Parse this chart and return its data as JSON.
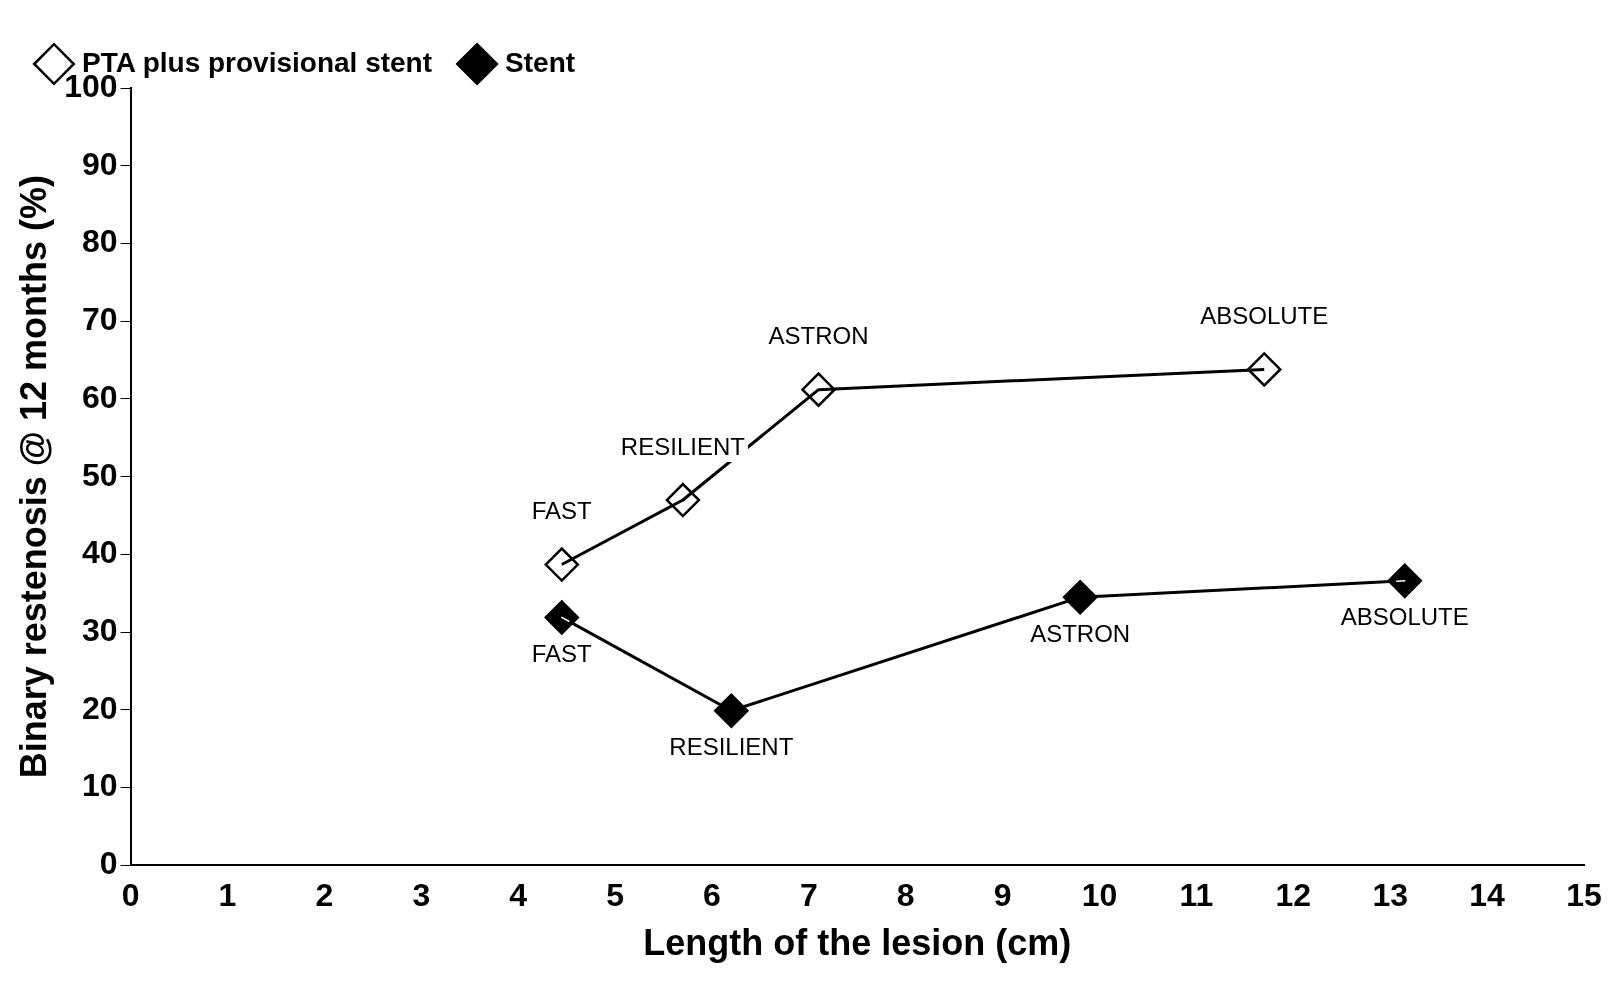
{
  "chart_data": {
    "type": "line",
    "xlabel": "Length of the lesion (cm)",
    "ylabel": "Binary restenosis @ 12 months (%)",
    "xlim": [
      0,
      15
    ],
    "xticks": [
      0,
      1,
      2,
      3,
      4,
      5,
      6,
      7,
      8,
      9,
      10,
      11,
      12,
      13,
      14,
      15
    ],
    "ylim": [
      0,
      100
    ],
    "yticks": [
      0,
      10,
      20,
      30,
      40,
      50,
      60,
      70,
      80,
      90,
      100
    ],
    "series": [
      {
        "name": "PTA plus provisional stent",
        "color": "#000000",
        "x": [
          4.45,
          5.7,
          7.1,
          11.7
        ],
        "values": [
          38.7,
          47,
          61.2,
          63.8
        ]
      },
      {
        "name": "Stent",
        "color": "#000000",
        "x": [
          4.45,
          6.2,
          9.8,
          13.15
        ],
        "values": [
          31.9,
          19.9,
          34.5,
          36.6
        ]
      }
    ],
    "annotations": [
      {
        "text": "FAST",
        "x": 4.45,
        "y": 38.7
      },
      {
        "text": "RESILIENT",
        "x": 5.7,
        "y": 47
      },
      {
        "text": "ASTRON",
        "x": 7.1,
        "y": 61.2
      },
      {
        "text": "ABSOLUTE",
        "x": 11.7,
        "y": 63.8
      },
      {
        "text": "FAST",
        "x": 4.45,
        "y": 31.9
      },
      {
        "text": "RESILIENT",
        "x": 6.2,
        "y": 19.9
      },
      {
        "text": "ASTRON",
        "x": 9.8,
        "y": 34.5
      },
      {
        "text": "ABSOLUTE",
        "x": 13.15,
        "y": 36.6
      }
    ],
    "marker": "diamond",
    "legend": "top left",
    "grid": false
  }
}
